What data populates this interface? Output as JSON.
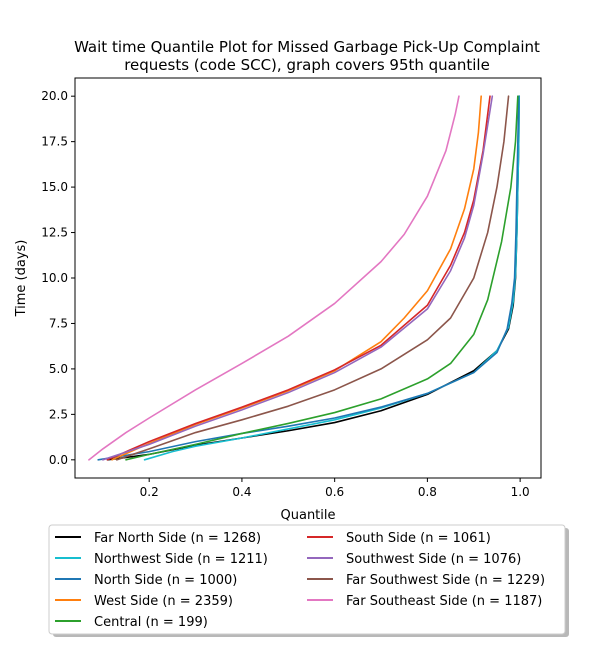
{
  "chart_data": {
    "type": "line",
    "title": "Wait time Quantile Plot for Missed Garbage Pick-Up Complaint requests (code SCC), graph covers 95th quantile",
    "title_lines": [
      "Wait time Quantile Plot for Missed Garbage Pick-Up Complaint",
      "requests (code SCC), graph covers 95th quantile"
    ],
    "xlabel": "Quantile",
    "ylabel": "Time (days)",
    "xlim": [
      0.04,
      1.045
    ],
    "ylim": [
      -1.0,
      21.0
    ],
    "xticks": [
      0.2,
      0.4,
      0.6,
      0.8,
      1.0
    ],
    "xtick_labels": [
      "0.2",
      "0.4",
      "0.6",
      "0.8",
      "1.0"
    ],
    "yticks": [
      0.0,
      2.5,
      5.0,
      7.5,
      10.0,
      12.5,
      15.0,
      17.5,
      20.0
    ],
    "ytick_labels": [
      "0.0",
      "2.5",
      "5.0",
      "7.5",
      "10.0",
      "12.5",
      "15.0",
      "17.5",
      "20.0"
    ],
    "grid": false,
    "legend_position": "bottom-center, below plot, two columns",
    "series": [
      {
        "name": "Far North Side (n = 1268)",
        "color": "#000000",
        "x": [
          0.11,
          0.2,
          0.3,
          0.4,
          0.5,
          0.6,
          0.7,
          0.8,
          0.9,
          0.95,
          0.975,
          0.985,
          0.99,
          0.993,
          0.995,
          0.997,
          0.998
        ],
        "y": [
          0.0,
          0.3,
          0.8,
          1.2,
          1.6,
          2.05,
          2.7,
          3.6,
          4.9,
          6.0,
          7.2,
          8.5,
          10.0,
          12.5,
          15.0,
          17.5,
          20.0
        ]
      },
      {
        "name": "Northwest Side (n = 1211)",
        "color": "#17becf",
        "x": [
          0.19,
          0.25,
          0.3,
          0.4,
          0.5,
          0.6,
          0.7,
          0.8,
          0.9,
          0.95,
          0.975,
          0.985,
          0.99,
          0.993,
          0.995,
          0.997,
          0.998
        ],
        "y": [
          0.0,
          0.45,
          0.75,
          1.2,
          1.7,
          2.2,
          2.85,
          3.65,
          4.8,
          6.0,
          7.3,
          8.7,
          10.2,
          12.5,
          15.0,
          17.5,
          20.0
        ]
      },
      {
        "name": "North Side (n = 1000)",
        "color": "#1f77b4",
        "x": [
          0.09,
          0.2,
          0.3,
          0.4,
          0.5,
          0.6,
          0.7,
          0.8,
          0.9,
          0.95,
          0.972,
          0.982,
          0.988,
          0.991,
          0.993,
          0.995,
          0.997
        ],
        "y": [
          0.0,
          0.45,
          1.0,
          1.45,
          1.85,
          2.3,
          2.9,
          3.65,
          4.8,
          5.9,
          7.2,
          8.6,
          10.0,
          12.5,
          15.0,
          17.5,
          20.0
        ]
      },
      {
        "name": "West Side (n = 2359)",
        "color": "#ff7f0e",
        "x": [
          0.12,
          0.2,
          0.3,
          0.4,
          0.5,
          0.6,
          0.7,
          0.75,
          0.8,
          0.85,
          0.88,
          0.9,
          0.91,
          0.916
        ],
        "y": [
          0.0,
          0.9,
          1.95,
          2.85,
          3.8,
          4.9,
          6.5,
          7.8,
          9.3,
          11.6,
          13.8,
          16.0,
          18.0,
          20.0
        ]
      },
      {
        "name": "Central (n = 199)",
        "color": "#2ca02c",
        "x": [
          0.15,
          0.2,
          0.3,
          0.4,
          0.5,
          0.6,
          0.7,
          0.8,
          0.85,
          0.9,
          0.93,
          0.96,
          0.98,
          0.99,
          0.995
        ],
        "y": [
          0.0,
          0.3,
          0.85,
          1.45,
          2.0,
          2.6,
          3.35,
          4.45,
          5.3,
          6.9,
          8.8,
          12.0,
          15.0,
          17.5,
          20.0
        ]
      },
      {
        "name": "South Side (n = 1061)",
        "color": "#d62728",
        "x": [
          0.11,
          0.2,
          0.3,
          0.4,
          0.5,
          0.6,
          0.7,
          0.8,
          0.85,
          0.88,
          0.9,
          0.92,
          0.935
        ],
        "y": [
          0.0,
          1.0,
          2.0,
          2.9,
          3.85,
          4.95,
          6.3,
          8.5,
          10.7,
          12.5,
          14.3,
          17.0,
          20.0
        ]
      },
      {
        "name": "Southwest Side (n = 1076)",
        "color": "#9467bd",
        "x": [
          0.1,
          0.2,
          0.3,
          0.4,
          0.5,
          0.6,
          0.7,
          0.8,
          0.85,
          0.88,
          0.9,
          0.92,
          0.94
        ],
        "y": [
          0.0,
          0.85,
          1.85,
          2.75,
          3.7,
          4.8,
          6.2,
          8.3,
          10.4,
          12.2,
          14.0,
          16.8,
          20.0
        ]
      },
      {
        "name": "Far Southwest Side (n = 1229)",
        "color": "#8c564b",
        "x": [
          0.13,
          0.2,
          0.3,
          0.4,
          0.5,
          0.6,
          0.7,
          0.8,
          0.85,
          0.9,
          0.93,
          0.95,
          0.965,
          0.975
        ],
        "y": [
          0.0,
          0.6,
          1.5,
          2.2,
          2.95,
          3.85,
          5.0,
          6.6,
          7.8,
          10.0,
          12.5,
          15.0,
          17.5,
          20.0
        ]
      },
      {
        "name": "Far Southeast Side (n = 1187)",
        "color": "#e377c2",
        "x": [
          0.07,
          0.1,
          0.15,
          0.2,
          0.3,
          0.4,
          0.5,
          0.6,
          0.7,
          0.75,
          0.8,
          0.84,
          0.86,
          0.868
        ],
        "y": [
          0.0,
          0.6,
          1.5,
          2.3,
          3.85,
          5.3,
          6.8,
          8.6,
          10.9,
          12.4,
          14.5,
          17.0,
          19.0,
          20.0
        ]
      }
    ]
  }
}
